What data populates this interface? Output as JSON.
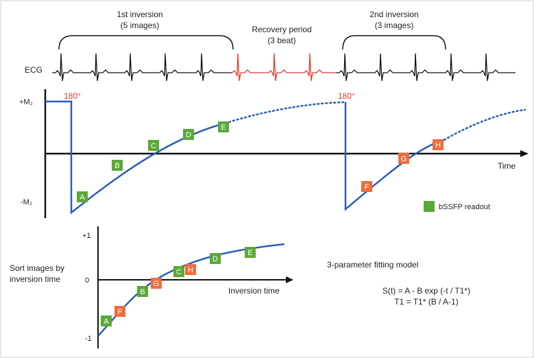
{
  "header": {
    "first_inversion": "1st inversion",
    "first_inversion_sub": "(5 images)",
    "recovery": "Recovery period",
    "recovery_sub": "(3 beat)",
    "second_inversion": "2nd inversion",
    "second_inversion_sub": "(3 images)",
    "ecg": "ECG"
  },
  "main_plot": {
    "plus_m": "+M₂",
    "minus_m": "-M₂",
    "pulse_1": "180°",
    "pulse_2": "180°",
    "time_axis": "Time",
    "legend": "bSSFP readout"
  },
  "readouts_first": [
    "A",
    "B",
    "C",
    "D",
    "E"
  ],
  "readouts_second": [
    "F",
    "G",
    "H"
  ],
  "sorted_plot": {
    "side_label_1": "Sort images by",
    "side_label_2": "inversion time",
    "y_top": "+1",
    "y_zero": "0",
    "y_bottom": "-1",
    "x_axis": "Inversion time",
    "points": [
      "A",
      "F",
      "B",
      "G",
      "C",
      "H",
      "D",
      "E"
    ]
  },
  "fitting": {
    "title": "3-parameter fitting model",
    "eq1": "S(t) = A - B exp (-t / T1*)",
    "eq2": "T1 = T1* (B / A-1)"
  },
  "colors": {
    "green": "#5aa839",
    "orange": "#ee6d3f",
    "blue": "#2a5cb8",
    "ecg_red": "#e53935"
  }
}
